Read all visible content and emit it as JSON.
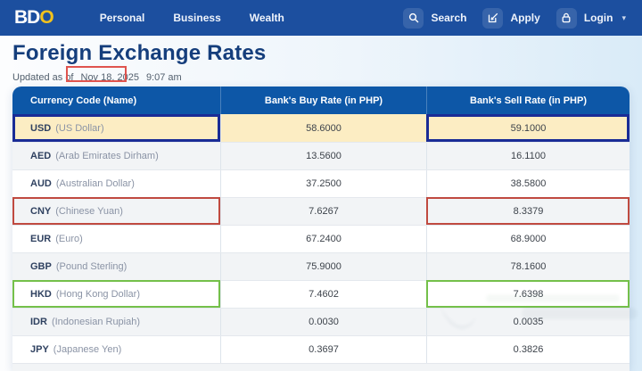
{
  "navbar": {
    "logo": {
      "part_white": "BD",
      "part_gold": "O"
    },
    "links": [
      {
        "label": "Personal"
      },
      {
        "label": "Business"
      },
      {
        "label": "Wealth"
      }
    ],
    "actions": {
      "search_label": "Search",
      "apply_label": "Apply",
      "login_label": "Login",
      "login_caret": "▾"
    }
  },
  "page": {
    "title": "Foreign Exchange Rates",
    "updated_prefix": "Updated as of",
    "updated_date": "Nov 18, 2025",
    "updated_time": "9:07 am"
  },
  "table": {
    "columns": [
      "Currency Code (Name)",
      "Bank's Buy Rate (in PHP)",
      "Bank's Sell Rate (in PHP)"
    ],
    "rows": [
      {
        "code": "USD",
        "name": "(US Dollar)",
        "buy": "58.6000",
        "sell": "59.1000"
      },
      {
        "code": "AED",
        "name": "(Arab Emirates Dirham)",
        "buy": "13.5600",
        "sell": "16.1100"
      },
      {
        "code": "AUD",
        "name": "(Australian Dollar)",
        "buy": "37.2500",
        "sell": "38.5800"
      },
      {
        "code": "CNY",
        "name": "(Chinese Yuan)",
        "buy": "7.6267",
        "sell": "8.3379"
      },
      {
        "code": "EUR",
        "name": "(Euro)",
        "buy": "67.2400",
        "sell": "68.9000"
      },
      {
        "code": "GBP",
        "name": "(Pound Sterling)",
        "buy": "75.9000",
        "sell": "78.1600"
      },
      {
        "code": "HKD",
        "name": "(Hong Kong Dollar)",
        "buy": "7.4602",
        "sell": "7.6398"
      },
      {
        "code": "IDR",
        "name": "(Indonesian Rupiah)",
        "buy": "0.0030",
        "sell": "0.0035"
      },
      {
        "code": "JPY",
        "name": "(Japanese Yen)",
        "buy": "0.3697",
        "sell": "0.3826"
      }
    ],
    "highlighted_row": "USD",
    "row_colors": {
      "usd": "#fcedc3",
      "alt": "#f2f4f6",
      "base": "#ffffff"
    }
  },
  "colors": {
    "navbar_blue": "#1c4f9f",
    "header_blue": "#0d57a7",
    "title_navy": "#153e7c",
    "logo_gold": "#f2c21d",
    "annotation_date_box": "#df544e",
    "annotation_usd_box": "#1a2c96",
    "annotation_cny_box": "#c04a40",
    "annotation_hkd_box": "#74c04a"
  }
}
